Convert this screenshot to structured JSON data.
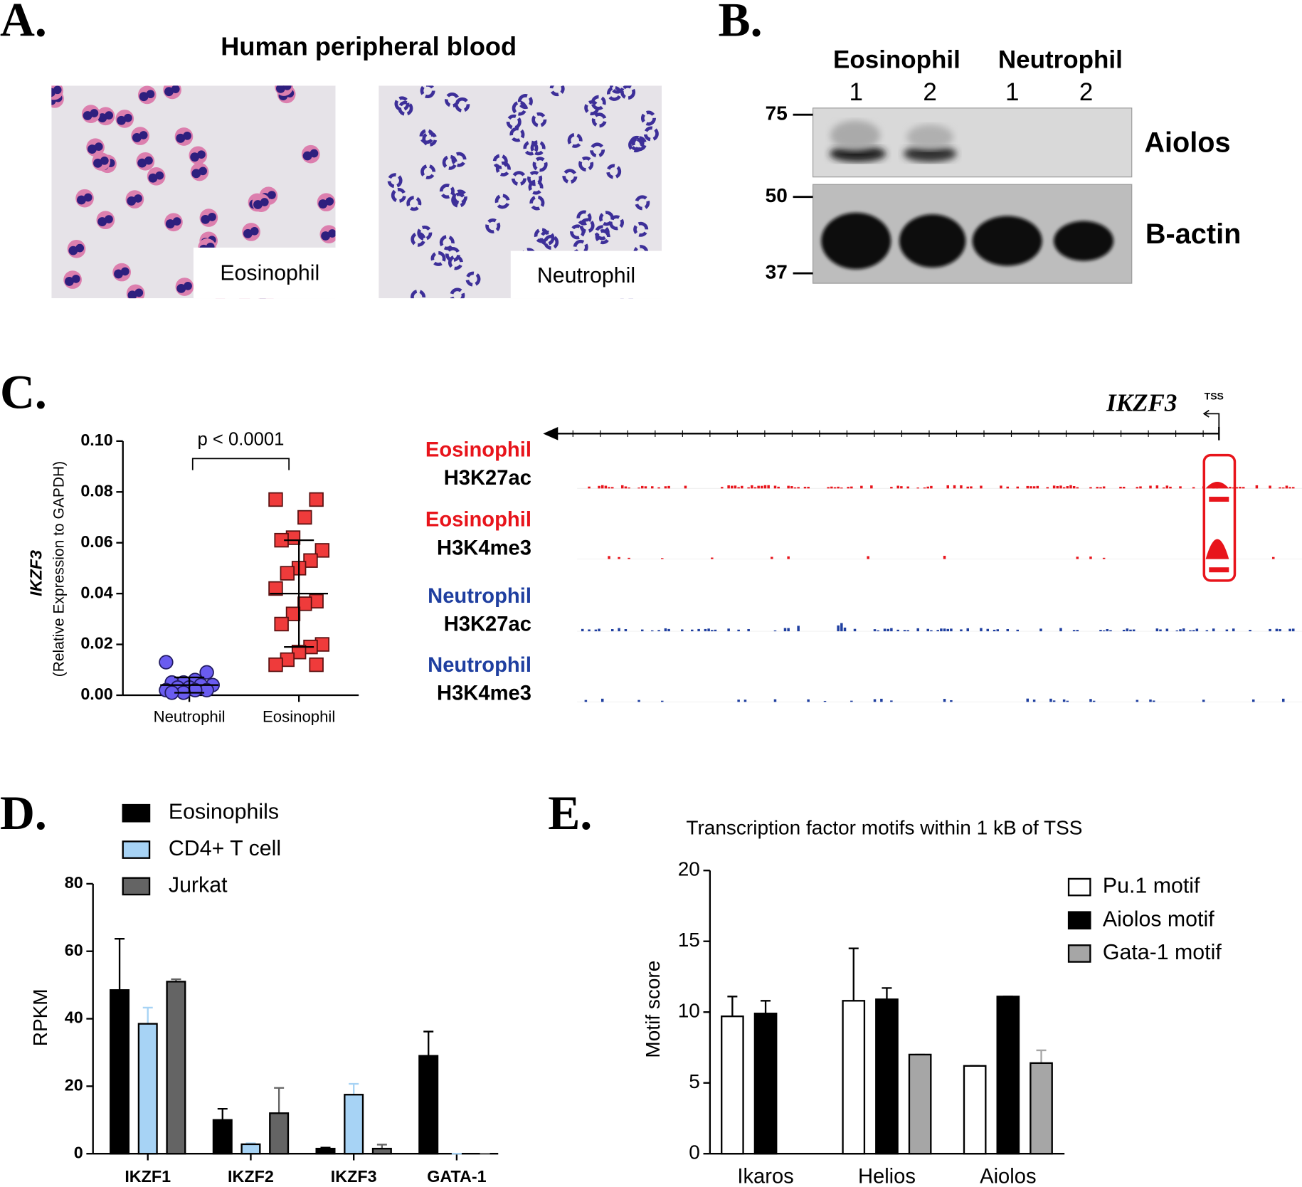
{
  "panel_labels": [
    "A.",
    "B.",
    "C.",
    "D.",
    "E."
  ],
  "micrographs": {
    "title": "Human peripheral blood",
    "labels": [
      "Eosinophil",
      "Neutrophil"
    ]
  },
  "western_blot": {
    "groups": [
      "Eosinophil",
      "Neutrophil"
    ],
    "lanes": [
      "1",
      "2",
      "1",
      "2"
    ],
    "markers": [
      75,
      50,
      37
    ],
    "proteins": [
      "Aiolos",
      "B-actin"
    ]
  },
  "chip_tracks": {
    "gene": "IKZF3",
    "tss": "TSS",
    "tracks": [
      {
        "cell": "Eosinophil",
        "mark": "H3K27ac",
        "color": "#e8141b"
      },
      {
        "cell": "Eosinophil",
        "mark": "H3K4me3",
        "color": "#e8141b"
      },
      {
        "cell": "Neutrophil",
        "mark": "H3K27ac",
        "color": "#1f3fa0"
      },
      {
        "cell": "Neutrophil",
        "mark": "H3K4me3",
        "color": "#1f3fa0"
      }
    ]
  },
  "chart_data": [
    {
      "type": "dot",
      "ylabel": "IKZF3",
      "ylabel_note": "(Relative Expression to GAPDH)",
      "annotation": "p < 0.0001",
      "categories": [
        "Neutrophil",
        "Eosinophil"
      ],
      "groups": [
        {
          "color": "#6a5cf0",
          "marker": "circle",
          "values": [
            0.013,
            0.009,
            0.006,
            0.005,
            0.005,
            0.004,
            0.004,
            0.003,
            0.003,
            0.002,
            0.002,
            0.002,
            0.001,
            0.001
          ],
          "mean": 0.004,
          "sd": 0.003
        },
        {
          "color": "#ef3b3b",
          "marker": "square",
          "values": [
            0.077,
            0.077,
            0.07,
            0.062,
            0.061,
            0.057,
            0.053,
            0.05,
            0.048,
            0.042,
            0.037,
            0.036,
            0.032,
            0.028,
            0.02,
            0.019,
            0.017,
            0.014,
            0.012,
            0.012
          ],
          "mean": 0.04,
          "sd": 0.021
        }
      ],
      "ylim": [
        0,
        0.1
      ],
      "yticks": [
        {
          "value": 0,
          "label": "0.00"
        },
        0.02,
        0.04,
        0.06,
        0.08,
        {
          "value": 0.1,
          "label": "0.10"
        }
      ]
    },
    {
      "type": "bar",
      "ylabel": "RPKM",
      "categories": [
        "IKZF1",
        "IKZF2",
        "IKZF3",
        "GATA-1"
      ],
      "series": [
        {
          "name": "Eosinophils",
          "color": "#000000",
          "values": [
            48.5,
            10,
            1.5,
            29
          ],
          "errors": [
            15.2,
            3.3,
            0.3,
            7.2
          ]
        },
        {
          "name": "CD4+ T cell",
          "color": "#a7d3f5",
          "values": [
            38.5,
            2.8,
            17.5,
            0
          ],
          "errors": [
            4.8,
            0.3,
            3.2,
            0
          ]
        },
        {
          "name": "Jurkat",
          "color": "#646464",
          "values": [
            51,
            12,
            1.5,
            0
          ],
          "errors": [
            0.7,
            7.5,
            1.2,
            0
          ]
        }
      ],
      "ylim": [
        0,
        80
      ],
      "yticks": [
        0,
        20,
        40,
        60,
        80
      ],
      "legend": "top-left"
    },
    {
      "type": "bar",
      "title": "Transcription factor motifs within 1 kB of TSS",
      "ylabel": "Motif score",
      "categories": [
        "Ikaros",
        "Helios",
        "Aiolos"
      ],
      "series": [
        {
          "name": "Pu.1 motif",
          "color": "#ffffff",
          "values": [
            9.7,
            10.8,
            6.2
          ],
          "errors": [
            1.4,
            3.7,
            0
          ]
        },
        {
          "name": "Aiolos motif",
          "color": "#000000",
          "values": [
            9.9,
            10.9,
            11.1
          ],
          "errors": [
            0.9,
            0.8,
            0
          ]
        },
        {
          "name": "Gata-1 motif",
          "color": "#a6a6a6",
          "values": [
            null,
            7.0,
            6.4
          ],
          "errors": [
            null,
            0,
            0.9
          ]
        }
      ],
      "ylim": [
        0,
        20
      ],
      "yticks": [
        0,
        5,
        10,
        15,
        20
      ],
      "legend": "top-right"
    }
  ]
}
